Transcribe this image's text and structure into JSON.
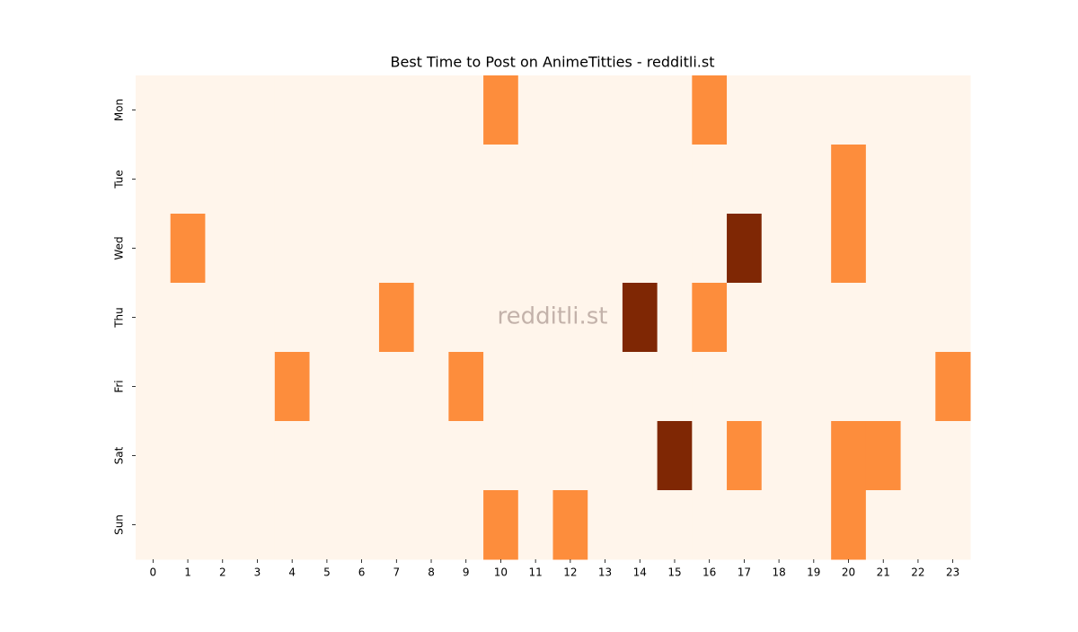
{
  "chart_data": {
    "type": "heatmap",
    "title": "Best Time to Post on AnimeTitties - redditli.st",
    "watermark": "redditli.st",
    "x": [
      0,
      1,
      2,
      3,
      4,
      5,
      6,
      7,
      8,
      9,
      10,
      11,
      12,
      13,
      14,
      15,
      16,
      17,
      18,
      19,
      20,
      21,
      22,
      23
    ],
    "y": [
      "Mon",
      "Tue",
      "Wed",
      "Thu",
      "Fri",
      "Sat",
      "Sun"
    ],
    "values": [
      [
        0,
        0,
        0,
        0,
        0,
        0,
        0,
        0,
        0,
        0,
        1,
        0,
        0,
        0,
        0,
        0,
        1,
        0,
        0,
        0,
        0,
        0,
        0,
        0
      ],
      [
        0,
        0,
        0,
        0,
        0,
        0,
        0,
        0,
        0,
        0,
        0,
        0,
        0,
        0,
        0,
        0,
        0,
        0,
        0,
        0,
        1,
        0,
        0,
        0
      ],
      [
        0,
        1,
        0,
        0,
        0,
        0,
        0,
        0,
        0,
        0,
        0,
        0,
        0,
        0,
        0,
        0,
        0,
        2,
        0,
        0,
        1,
        0,
        0,
        0
      ],
      [
        0,
        0,
        0,
        0,
        0,
        0,
        0,
        1,
        0,
        0,
        0,
        0,
        0,
        0,
        2,
        0,
        1,
        0,
        0,
        0,
        0,
        0,
        0,
        0
      ],
      [
        0,
        0,
        0,
        0,
        1,
        0,
        0,
        0,
        0,
        1,
        0,
        0,
        0,
        0,
        0,
        0,
        0,
        0,
        0,
        0,
        0,
        0,
        0,
        1
      ],
      [
        0,
        0,
        0,
        0,
        0,
        0,
        0,
        0,
        0,
        0,
        0,
        0,
        0,
        0,
        0,
        2,
        0,
        1,
        0,
        0,
        1,
        1,
        0,
        0
      ],
      [
        0,
        0,
        0,
        0,
        0,
        0,
        0,
        0,
        0,
        0,
        1,
        0,
        1,
        0,
        0,
        0,
        0,
        0,
        0,
        0,
        1,
        0,
        0,
        0
      ]
    ],
    "colors": [
      "#fff5eb",
      "#fd8d3c",
      "#7f2704"
    ]
  }
}
